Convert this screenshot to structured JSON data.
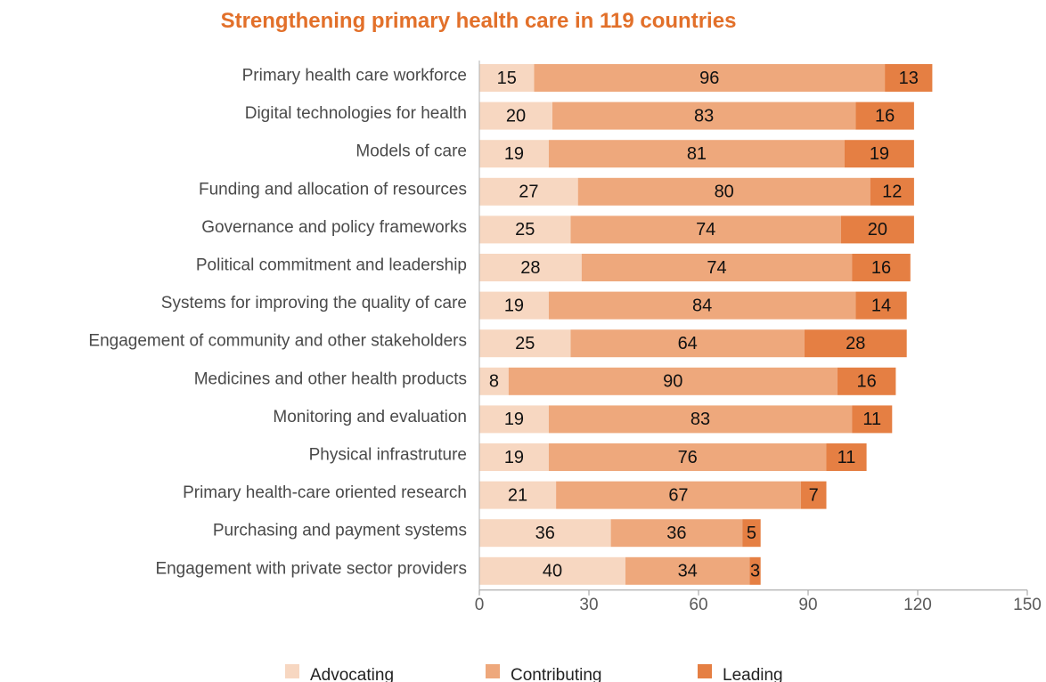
{
  "chart_data": {
    "type": "bar",
    "orientation": "horizontal",
    "stacked": true,
    "title": "Strengthening primary health care in 119 countries",
    "categories": [
      "Primary health care workforce",
      "Digital technologies for health",
      "Models of care",
      "Funding and allocation of resources",
      "Governance and policy frameworks",
      "Political commitment and leadership",
      "Systems for improving the quality of care",
      "Engagement of community and other stakeholders",
      "Medicines and other health products",
      "Monitoring and evaluation",
      "Physical infrastruture",
      "Primary health-care oriented research",
      "Purchasing and payment systems",
      "Engagement with private sector providers"
    ],
    "series": [
      {
        "name": "Advocating",
        "color": "#f7d7c1",
        "values": [
          15,
          20,
          19,
          27,
          25,
          28,
          19,
          25,
          8,
          19,
          19,
          21,
          36,
          40
        ]
      },
      {
        "name": "Contributing",
        "color": "#eea87c",
        "values": [
          96,
          83,
          81,
          80,
          74,
          74,
          84,
          64,
          90,
          83,
          76,
          67,
          36,
          34
        ]
      },
      {
        "name": "Leading",
        "color": "#e57f43",
        "values": [
          13,
          16,
          19,
          12,
          20,
          16,
          14,
          28,
          16,
          11,
          11,
          7,
          5,
          3
        ]
      }
    ],
    "xlim": [
      0,
      150
    ],
    "xticks": [
      0,
      30,
      60,
      90,
      120,
      150
    ],
    "grid": false,
    "legend_position": "bottom"
  }
}
